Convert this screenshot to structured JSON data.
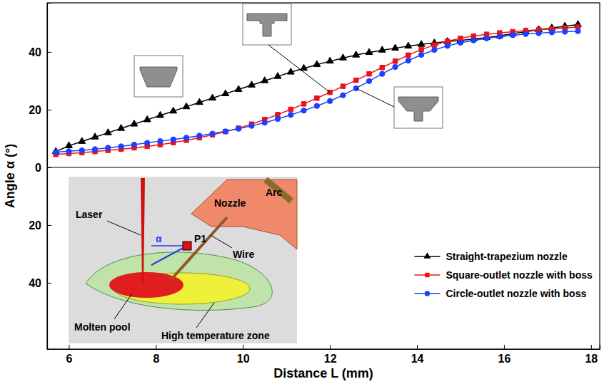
{
  "chart_data": [
    {
      "type": "line",
      "ylabel": "Angle α (°)",
      "x": [
        5.7,
        6.0,
        6.3,
        6.6,
        6.9,
        7.2,
        7.5,
        7.8,
        8.1,
        8.4,
        8.7,
        9.0,
        9.3,
        9.6,
        9.9,
        10.2,
        10.5,
        10.8,
        11.1,
        11.4,
        11.7,
        12.0,
        12.3,
        12.6,
        12.9,
        13.2,
        13.5,
        13.8,
        14.1,
        14.4,
        14.7,
        15.0,
        15.3,
        15.6,
        15.9,
        16.2,
        16.5,
        16.8,
        17.1,
        17.4,
        17.7
      ],
      "xlim": [
        5.5,
        18.2
      ],
      "ylim": [
        0,
        57
      ],
      "yticks": [
        0,
        20,
        40
      ],
      "tick_labels": "y",
      "legend": "lower right",
      "series": [
        {
          "name": "Straight-trapezium nozzle",
          "color": "#000000",
          "marker": "triangle",
          "values": [
            5.5,
            7.5,
            9,
            10.5,
            12,
            13.5,
            15,
            16.5,
            18,
            19.5,
            21,
            22.5,
            24,
            25.5,
            27,
            28.5,
            30,
            31.5,
            33,
            34.3,
            35.6,
            36.8,
            37.9,
            38.9,
            39.8,
            40.6,
            41.3,
            42,
            42.6,
            43.1,
            43.6,
            44,
            44.5,
            45,
            45.6,
            46.3,
            47,
            47.7,
            48.3,
            48.9,
            49.5
          ]
        },
        {
          "name": "Square-outlet nozzle with boss",
          "color": "#e8141c",
          "marker": "square",
          "values": [
            4.5,
            4.8,
            5.1,
            5.5,
            5.9,
            6.3,
            6.8,
            7.3,
            7.9,
            8.6,
            9.4,
            10.3,
            11.3,
            12.4,
            13.6,
            15,
            16.6,
            18.3,
            20.1,
            22,
            24,
            26,
            28.1,
            30.2,
            32.4,
            34.6,
            36.8,
            38.9,
            40.8,
            42.4,
            43.7,
            44.7,
            45.5,
            46.1,
            46.6,
            47,
            47.4,
            47.7,
            48,
            48.3,
            48.6
          ]
        },
        {
          "name": "Circle-outlet nozzle with boss",
          "color": "#1f3fff",
          "marker": "circle",
          "values": [
            5.3,
            5.6,
            5.9,
            6.3,
            6.8,
            7.3,
            7.9,
            8.5,
            9.1,
            9.7,
            10.3,
            11,
            11.7,
            12.5,
            13.4,
            14.4,
            15.5,
            16.8,
            18.2,
            19.7,
            21.3,
            23,
            25,
            27.4,
            29.9,
            32.4,
            34.8,
            37,
            39,
            40.7,
            42.1,
            43.2,
            44,
            44.7,
            45.3,
            45.8,
            46.2,
            46.5,
            46.8,
            47,
            47.2
          ]
        }
      ]
    },
    {
      "type": "diagram",
      "xlabel": "Distance L (mm)",
      "xlim": [
        5.5,
        18.2
      ],
      "xticks": [
        6,
        8,
        10,
        12,
        14,
        16,
        18
      ],
      "ylim": [
        63,
        0
      ],
      "yticks": [
        20,
        40
      ],
      "annotations": [
        "Laser",
        "Nozzle",
        "Arc",
        "Wire",
        "P1",
        "α",
        "Molten pool",
        "High temperature zone"
      ]
    }
  ]
}
